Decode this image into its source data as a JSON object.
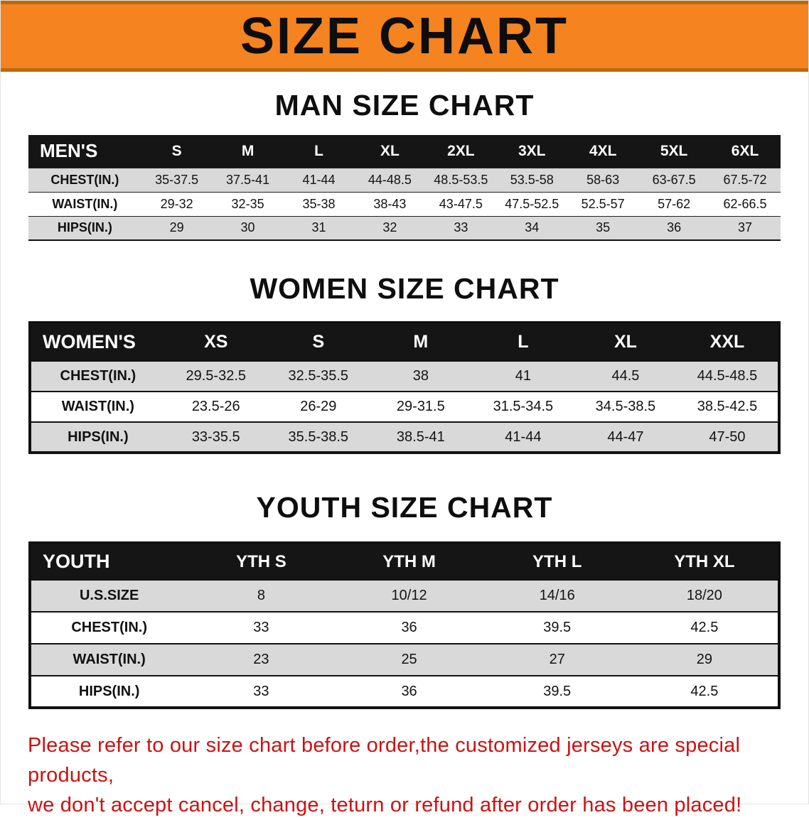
{
  "banner": {
    "title": "SIZE CHART"
  },
  "theme": {
    "banner_bg": "#F5831F",
    "header_bg": "#151515",
    "row_alt_bg": "#D9D9D9",
    "notice_color": "#CC1212"
  },
  "sections": [
    {
      "id": "men",
      "heading": "MAN SIZE CHART",
      "table": {
        "header": [
          "MEN'S",
          "S",
          "M",
          "L",
          "XL",
          "2XL",
          "3XL",
          "4XL",
          "5XL",
          "6XL"
        ],
        "rows": [
          [
            "CHEST(IN.)",
            "35-37.5",
            "37.5-41",
            "41-44",
            "44-48.5",
            "48.5-53.5",
            "53.5-58",
            "58-63",
            "63-67.5",
            "67.5-72"
          ],
          [
            "WAIST(IN.)",
            "29-32",
            "32-35",
            "35-38",
            "38-43",
            "43-47.5",
            "47.5-52.5",
            "52.5-57",
            "57-62",
            "62-66.5"
          ],
          [
            "HIPS(IN.)",
            "29",
            "30",
            "31",
            "32",
            "33",
            "34",
            "35",
            "36",
            "37"
          ]
        ]
      }
    },
    {
      "id": "women",
      "heading": "WOMEN SIZE CHART",
      "table": {
        "header": [
          "WOMEN'S",
          "XS",
          "S",
          "M",
          "L",
          "XL",
          "XXL"
        ],
        "rows": [
          [
            "CHEST(IN.)",
            "29.5-32.5",
            "32.5-35.5",
            "38",
            "41",
            "44.5",
            "44.5-48.5"
          ],
          [
            "WAIST(IN.)",
            "23.5-26",
            "26-29",
            "29-31.5",
            "31.5-34.5",
            "34.5-38.5",
            "38.5-42.5"
          ],
          [
            "HIPS(IN.)",
            "33-35.5",
            "35.5-38.5",
            "38.5-41",
            "41-44",
            "44-47",
            "47-50"
          ]
        ]
      }
    },
    {
      "id": "youth",
      "heading": "YOUTH SIZE CHART",
      "table": {
        "header": [
          "YOUTH",
          "YTH S",
          "YTH M",
          "YTH L",
          "YTH XL"
        ],
        "rows": [
          [
            "U.S.SIZE",
            "8",
            "10/12",
            "14/16",
            "18/20"
          ],
          [
            "CHEST(IN.)",
            "33",
            "36",
            "39.5",
            "42.5"
          ],
          [
            "WAIST(IN.)",
            "23",
            "25",
            "27",
            "29"
          ],
          [
            "HIPS(IN.)",
            "33",
            "36",
            "39.5",
            "42.5"
          ]
        ]
      }
    }
  ],
  "footer": {
    "line1": "Please refer to our size chart before order,the customized jerseys are special products,",
    "line2": "we don't accept cancel, change, teturn or refund after order has been placed!"
  }
}
